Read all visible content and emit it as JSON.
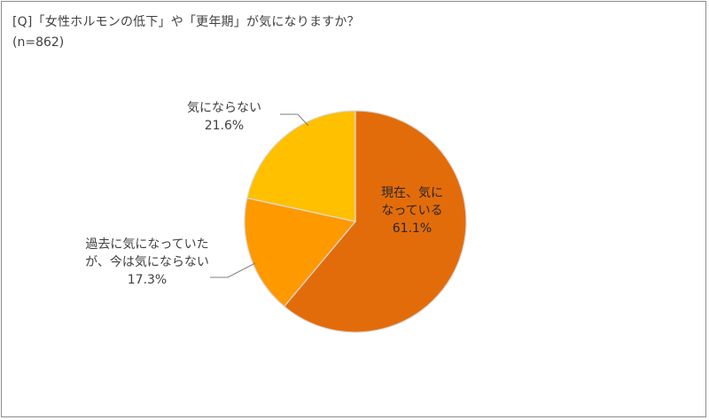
{
  "chart_data": {
    "type": "pie",
    "title": "[Q]「女性ホルモンの低下」や「更年期」が気になりますか？",
    "subtitle": "(n=862)",
    "slices": [
      {
        "label_lines": [
          "現在、気に",
          "なっている"
        ],
        "value": 61.1,
        "value_label": "61.1%",
        "color": "#e36c0a"
      },
      {
        "label_lines": [
          "過去に気になっていた",
          "が、今は気にならない"
        ],
        "value": 17.3,
        "value_label": "17.3%",
        "color": "#ff9900"
      },
      {
        "label_lines": [
          "気にならない"
        ],
        "value": 21.6,
        "value_label": "21.6%",
        "color": "#ffc000"
      }
    ],
    "start_angle_deg": 0,
    "direction": "clockwise"
  }
}
